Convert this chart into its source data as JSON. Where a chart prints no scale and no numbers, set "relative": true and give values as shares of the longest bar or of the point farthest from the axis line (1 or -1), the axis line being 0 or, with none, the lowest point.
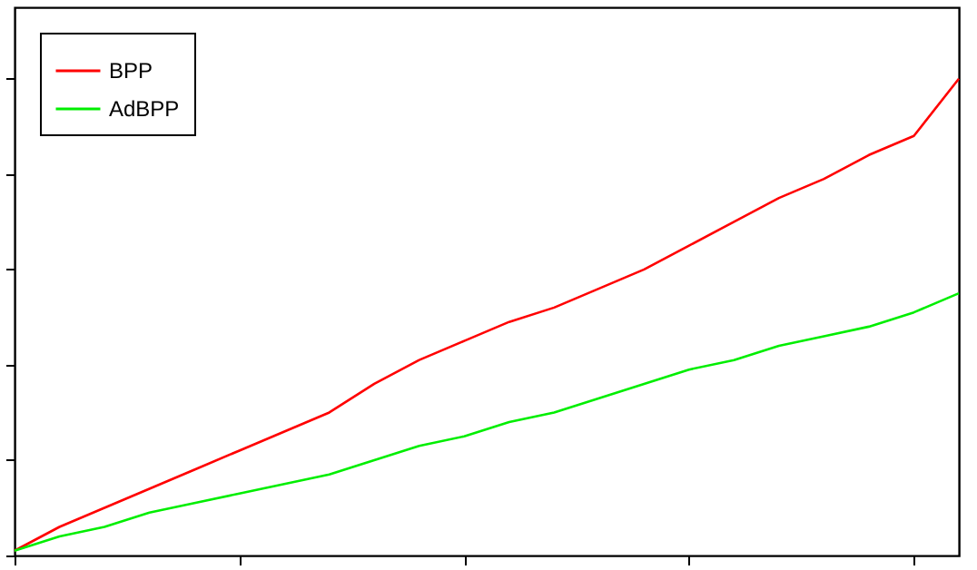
{
  "chart_data": {
    "type": "line",
    "relative": true,
    "tick_labels": false,
    "legend": "top left",
    "grid": false,
    "marker": "none",
    "categories": [
      null,
      null,
      null,
      null,
      null,
      null,
      null,
      null,
      null,
      null,
      null,
      null,
      null,
      null,
      null,
      null,
      null,
      null,
      null,
      null,
      null,
      null
    ],
    "series": [
      {
        "name": "BPP",
        "color": "#ff0000",
        "values": [
          0.01,
          0.06,
          0.1,
          0.14,
          0.18,
          0.22,
          0.26,
          0.3,
          0.36,
          0.41,
          0.45,
          0.49,
          0.52,
          0.56,
          0.6,
          0.65,
          0.7,
          0.75,
          0.79,
          0.84,
          0.88,
          1
        ]
      },
      {
        "name": "AdBPP",
        "color": "#00ee00",
        "values": [
          0.01,
          0.04,
          0.06,
          0.09,
          0.11,
          0.13,
          0.15,
          0.17,
          0.2,
          0.23,
          0.25,
          0.28,
          0.3,
          0.33,
          0.36,
          0.39,
          0.41,
          0.44,
          0.46,
          0.48,
          0.51,
          0.55
        ]
      }
    ]
  }
}
